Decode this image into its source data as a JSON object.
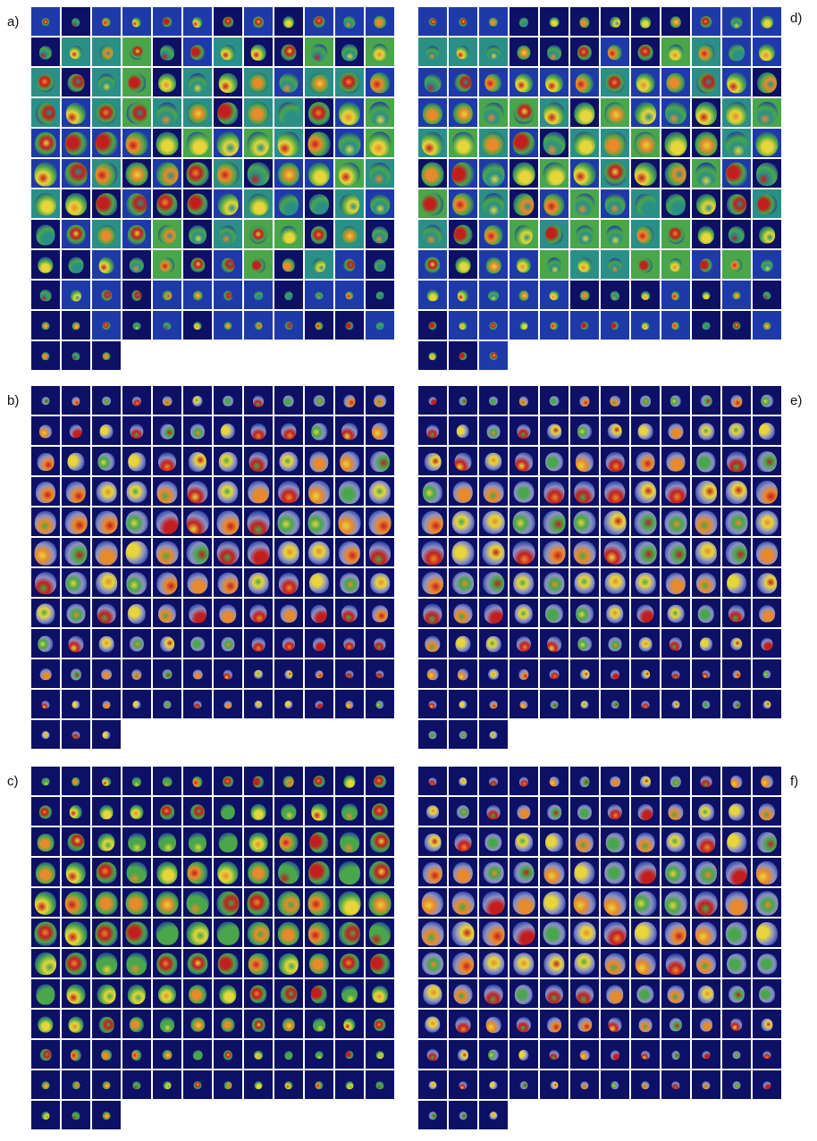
{
  "panels": [
    {
      "id": "a",
      "label": "a)",
      "variant": "a"
    },
    {
      "id": "b",
      "label": "b)",
      "variant": "b"
    },
    {
      "id": "c",
      "label": "c)",
      "variant": "c"
    },
    {
      "id": "d",
      "label": "d)",
      "variant": "d"
    },
    {
      "id": "e",
      "label": "e)",
      "variant": "e"
    },
    {
      "id": "f",
      "label": "f)",
      "variant": "f"
    }
  ],
  "grid": {
    "columns": 12,
    "tile_count": 135
  },
  "colors": {
    "dark_navy": "#0d1064",
    "royal_blue": "#1e3aa8",
    "teal": "#2a8f86",
    "green": "#49a64a",
    "yellow": "#e6d63a",
    "orange": "#e98a2a",
    "red": "#c21e1e",
    "brain_gray": "#8d91c4"
  }
}
